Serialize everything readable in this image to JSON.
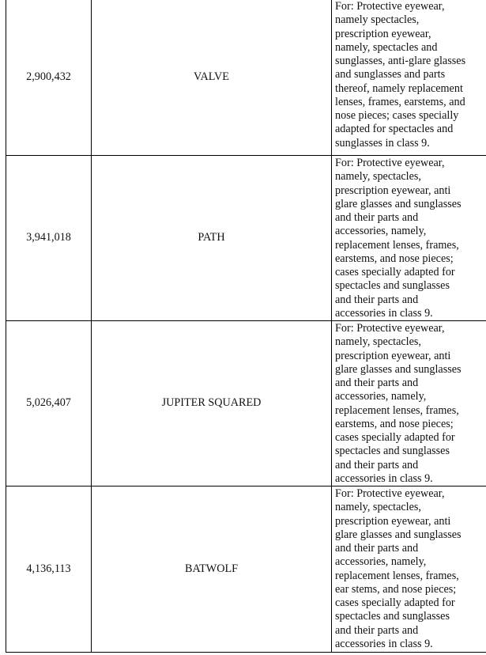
{
  "rows": [
    {
      "registration": "2,900,432",
      "mark": "VALVE",
      "goods": "For: Protective eyewear,\nnamely spectacles,\nprescription eyewear,\nnamely, spectacles and\nsunglasses, anti-glare glasses\nand sunglasses and parts\nthereof, namely replacement\nlenses, frames, earstems, and\nnose pieces; cases specially\nadapted for spectacles and\nsunglasses in class 9."
    },
    {
      "registration": "3,941,018",
      "mark": "PATH",
      "goods": "For: Protective eyewear,\nnamely, spectacles,\nprescription eyewear, anti\nglare glasses and sunglasses\nand their parts and\naccessories, namely,\nreplacement lenses, frames,\nearstems, and nose pieces;\ncases specially adapted for\nspectacles and sunglasses\nand their parts and\naccessories in class 9."
    },
    {
      "registration": "5,026,407",
      "mark": "JUPITER SQUARED",
      "goods": "For: Protective eyewear,\nnamely, spectacles,\nprescription eyewear, anti\nglare glasses and sunglasses\nand their parts and\naccessories, namely,\nreplacement lenses, frames,\nearstems, and nose pieces;\ncases specially adapted for\nspectacles and sunglasses\nand their parts and\naccessories in class 9."
    },
    {
      "registration": "4,136,113",
      "mark": "BATWOLF",
      "goods": "For: Protective eyewear,\nnamely, spectacles,\nprescription eyewear, anti\nglare glasses and sunglasses\nand their parts and\naccessories, namely,\nreplacement lenses, frames,\near stems, and nose pieces;\ncases specially adapted for\nspectacles and sunglasses\nand their parts and\naccessories in class 9."
    }
  ]
}
